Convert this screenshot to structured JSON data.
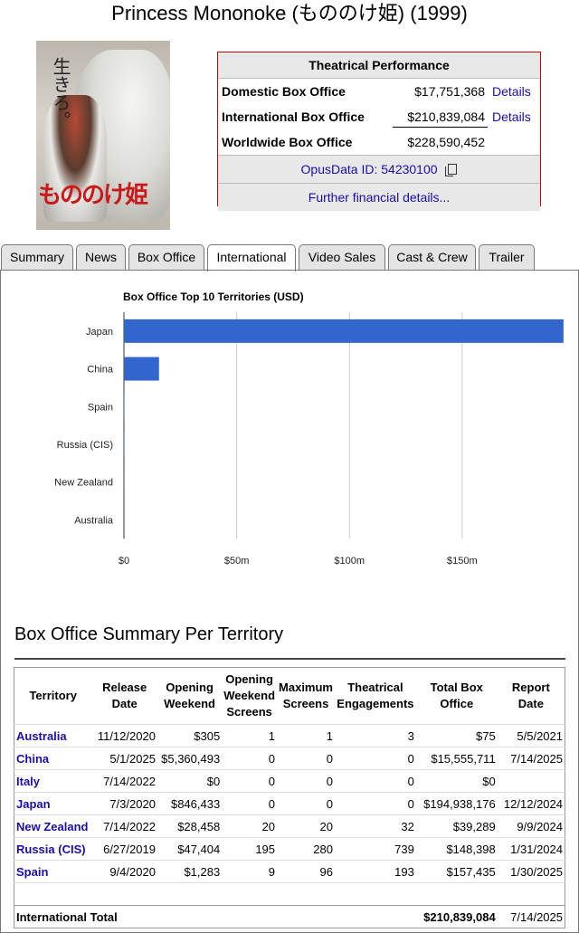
{
  "page_title": "Princess Mononoke (もののけ姫) (1999)",
  "poster": {
    "tagline_vertical": "生きろ。",
    "logo_text": "もののけ姫"
  },
  "performance": {
    "heading": "Theatrical Performance",
    "rows": [
      {
        "label": "Domestic Box Office",
        "value": "$17,751,368",
        "link": "Details"
      },
      {
        "label": "International Box Office",
        "value": "$210,839,084",
        "link": "Details"
      },
      {
        "label": "Worldwide Box Office",
        "value": "$228,590,452",
        "link": ""
      }
    ],
    "opus_id": "OpusData ID: 54230100",
    "further": "Further financial details..."
  },
  "tabs": [
    {
      "label": "Summary"
    },
    {
      "label": "News"
    },
    {
      "label": "Box Office"
    },
    {
      "label": "International"
    },
    {
      "label": "Video Sales"
    },
    {
      "label": "Cast & Crew"
    },
    {
      "label": "Trailer"
    }
  ],
  "active_tab": "International",
  "chart_data": {
    "type": "bar",
    "orientation": "horizontal",
    "title": "Box Office Top 10 Territories (USD)",
    "categories": [
      "Japan",
      "China",
      "Spain",
      "Russia (CIS)",
      "New Zealand",
      "Australia"
    ],
    "values": [
      194938176,
      15555711,
      157435,
      148398,
      39289,
      75
    ],
    "xlim": [
      0,
      195000000
    ],
    "xticks": [
      0,
      50000000,
      100000000,
      150000000
    ],
    "xtick_labels": [
      "$0",
      "$50m",
      "$100m",
      "$150m"
    ],
    "grid": true,
    "bar_color": "#3366cc"
  },
  "summary": {
    "heading": "Box Office Summary Per Territory",
    "columns": [
      "Territory",
      "Release Date",
      "Opening Weekend",
      "Opening Weekend Screens",
      "Maximum Screens",
      "Theatrical Engagements",
      "Total Box Office",
      "Report Date"
    ],
    "rows": [
      [
        "Australia",
        "11/12/2020",
        "$305",
        "1",
        "1",
        "3",
        "$75",
        "5/5/2021"
      ],
      [
        "China",
        "5/1/2025",
        "$5,360,493",
        "0",
        "0",
        "0",
        "$15,555,711",
        "7/14/2025"
      ],
      [
        "Italy",
        "7/14/2022",
        "$0",
        "0",
        "0",
        "0",
        "$0",
        ""
      ],
      [
        "Japan",
        "7/3/2020",
        "$846,433",
        "0",
        "0",
        "0",
        "$194,938,176",
        "12/12/2024"
      ],
      [
        "New Zealand",
        "7/14/2022",
        "$28,458",
        "20",
        "20",
        "32",
        "$39,289",
        "9/9/2024"
      ],
      [
        "Russia (CIS)",
        "6/27/2019",
        "$47,404",
        "195",
        "280",
        "739",
        "$148,398",
        "1/31/2024"
      ],
      [
        "Spain",
        "9/4/2020",
        "$1,283",
        "9",
        "96",
        "193",
        "$157,435",
        "1/30/2025"
      ]
    ],
    "total": {
      "label": "International Total",
      "box_office": "$210,839,084",
      "report_date": "7/14/2025"
    }
  }
}
